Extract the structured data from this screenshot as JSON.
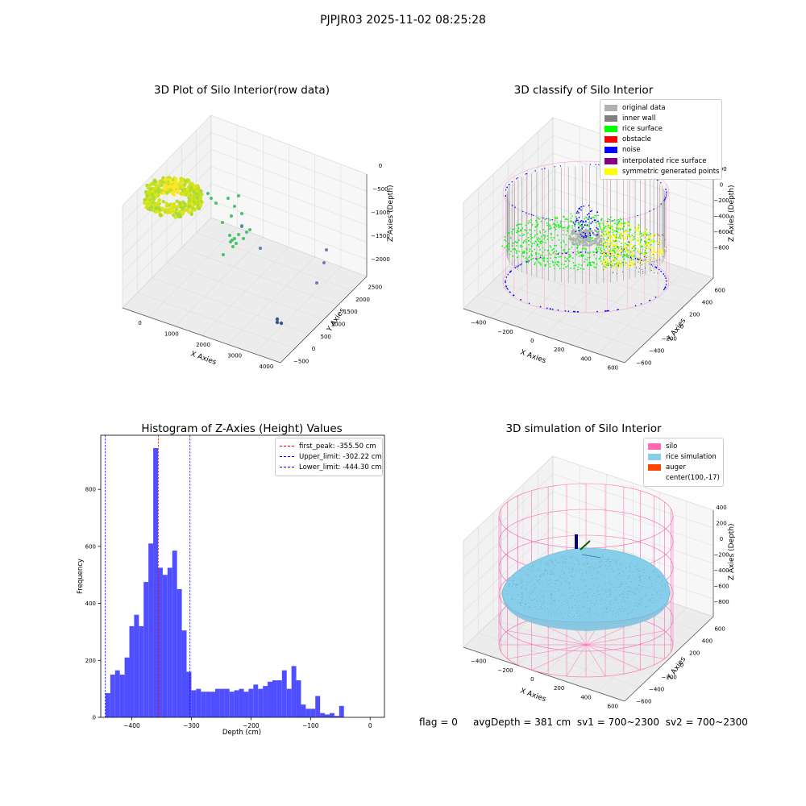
{
  "page_title": "PJPJR03 2025-11-02 08:25:28",
  "status_line": {
    "flag": "flag = 0",
    "avg_depth": "avgDepth = 381 cm",
    "sv1": "sv1 = 700~2300",
    "sv2": "sv2 = 700~2300"
  },
  "chart_data": [
    {
      "type": "scatter3d",
      "title": "3D Plot of Silo Interior(row data)",
      "xlabel": "X Axies",
      "ylabel": "Y Axies",
      "zlabel": "Z Axies (Depth)",
      "x_ticks": [
        "0",
        "1000",
        "2000",
        "3000",
        "4000"
      ],
      "y_ticks": [
        "−500",
        "0",
        "500",
        "1000",
        "1500",
        "2000",
        "2500"
      ],
      "z_ticks": [
        "0",
        "−500",
        "−1000",
        "−1500",
        "−2000"
      ],
      "clusters": [
        {
          "name": "",
          "color": "#cde41a",
          "x": [
            200,
            900
          ],
          "y": [
            1200,
            2300
          ],
          "z": [
            -700,
            -300
          ],
          "shape": "ring"
        },
        {
          "name": "",
          "color": "#3fb47a",
          "x": [
            1800,
            2500
          ],
          "y": [
            1000,
            1600
          ],
          "z": [
            -1600,
            -1000
          ],
          "shape": "spread"
        },
        {
          "name": "",
          "color": "#3b528b",
          "x": [
            3500,
            4000
          ],
          "y": [
            -500,
            500
          ],
          "z": [
            -2100,
            -1600
          ],
          "shape": "spread"
        }
      ]
    },
    {
      "type": "scatter3d",
      "title": "3D classify of Silo Interior",
      "xlabel": "X Axies",
      "ylabel": "Y Axies",
      "zlabel": "Z Axies (Depth)",
      "x_ticks": [
        "−400",
        "−200",
        "0",
        "200",
        "400",
        "600"
      ],
      "y_ticks": [
        "−600",
        "−400",
        "−200",
        "0",
        "200",
        "400",
        "600"
      ],
      "z_ticks": [
        "200",
        "0",
        "−200",
        "−400",
        "−600",
        "−800"
      ],
      "legend": [
        {
          "label": "original data",
          "color": "#b0b0b0"
        },
        {
          "label": "inner wall",
          "color": "#808080"
        },
        {
          "label": "rice surface",
          "color": "#00ff00"
        },
        {
          "label": "obstacle",
          "color": "#ff0000"
        },
        {
          "label": "noise",
          "color": "#0000ff"
        },
        {
          "label": "interpolated rice surface",
          "color": "#800080"
        },
        {
          "label": "symmetric generated points",
          "color": "#ffff00"
        }
      ]
    },
    {
      "type": "bar",
      "title": "Histogram of Z-Axies (Height) Values",
      "xlabel": "Depth (cm)",
      "ylabel": "Frequency",
      "xlim": [
        -452,
        24
      ],
      "ylim": [
        0,
        990
      ],
      "x_ticks": [
        -400,
        -300,
        -200,
        -100,
        0
      ],
      "y_ticks": [
        0,
        200,
        400,
        600,
        800
      ],
      "bin_width": 8,
      "bin_start": -444,
      "values": [
        85,
        150,
        165,
        150,
        210,
        320,
        360,
        320,
        475,
        610,
        945,
        525,
        500,
        525,
        585,
        450,
        305,
        160,
        95,
        100,
        90,
        90,
        90,
        100,
        100,
        100,
        90,
        95,
        100,
        90,
        100,
        115,
        100,
        110,
        125,
        130,
        130,
        165,
        100,
        180,
        130,
        45,
        30,
        30,
        75,
        15,
        10,
        15,
        5,
        40
      ],
      "bar_color": "#4f4fff",
      "lines": [
        {
          "label": "first_peak: -355.50 cm",
          "x": -355.5,
          "color": "#ff0000"
        },
        {
          "label": "Upper_limit: -302.22 cm",
          "x": -302.22,
          "color": "#0000ff"
        },
        {
          "label": "Lower_limit: -444.30 cm",
          "x": -444.3,
          "color": "#0000ff"
        }
      ]
    },
    {
      "type": "surface3d",
      "title": "3D simulation of Silo Interior",
      "xlabel": "X Axies",
      "ylabel": "Y Axies",
      "zlabel": "Z Axies (Depth)",
      "x_ticks": [
        "−400",
        "−200",
        "0",
        "200",
        "400",
        "600"
      ],
      "y_ticks": [
        "−600",
        "−400",
        "−200",
        "0",
        "200",
        "400",
        "600"
      ],
      "z_ticks": [
        "400",
        "200",
        "0",
        "−200",
        "−400",
        "−600",
        "−800"
      ],
      "legend": [
        {
          "label": "silo",
          "color": "#ff69b4"
        },
        {
          "label": "rice simulation",
          "color": "#87ceeb"
        },
        {
          "label": "auger",
          "color": "#ff4500"
        },
        {
          "label": "center(100,-17)",
          "color": ""
        }
      ]
    }
  ]
}
